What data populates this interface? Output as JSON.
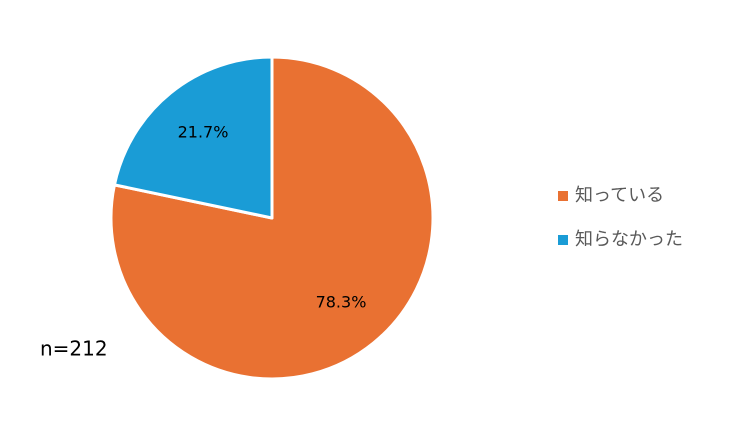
{
  "chart_data": {
    "type": "pie",
    "categories": [
      "知っている",
      "知らなかった"
    ],
    "values": [
      78.3,
      21.7
    ],
    "value_labels": [
      "78.3%",
      "21.7%"
    ],
    "colors": [
      "#e97132",
      "#1a9cd6"
    ],
    "annotation": "n=212",
    "legend": "right"
  }
}
